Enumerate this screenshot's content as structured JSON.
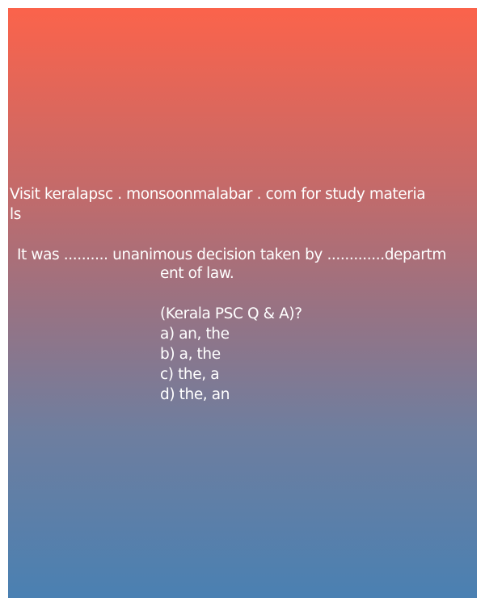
{
  "visit": {
    "line1": "Visit keralapsc . monsoonmalabar . com for study materia",
    "line2": "ls"
  },
  "question": {
    "line1": "It was .......... unanimous decision taken by .............departm",
    "line2": "ent of law."
  },
  "source": "(Kerala PSC Q & A)?",
  "options": [
    "a) an, the",
    "b) a, the",
    "c) the, a",
    "d) the, an"
  ],
  "colors": {
    "gradient_top": "#fb634b",
    "gradient_bottom": "#4a80b2",
    "text": "#ffffff"
  }
}
